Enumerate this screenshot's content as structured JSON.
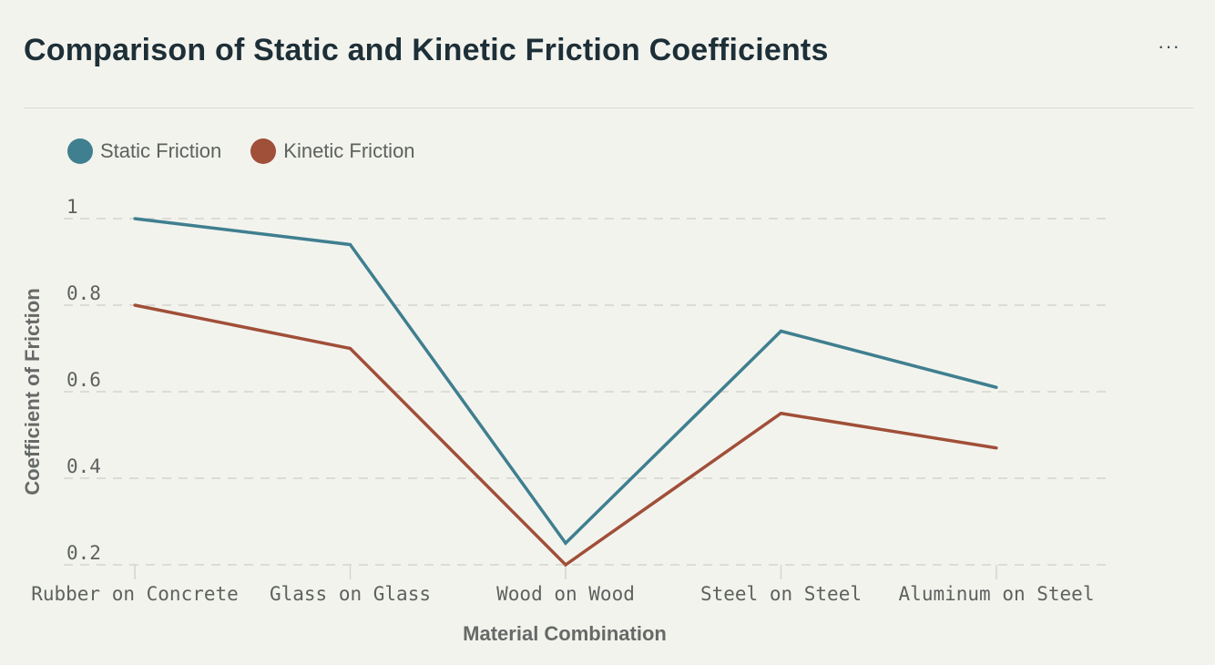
{
  "header": {
    "title": "Comparison of Static and Kinetic Friction Coefficients",
    "menu_icon": "more-horizontal-icon",
    "menu_label": "···"
  },
  "colors": {
    "static": "#3f7f8f",
    "kinetic": "#a04f38",
    "grid": "#d4d5ce"
  },
  "chart_data": {
    "type": "line",
    "title": "",
    "xlabel": "Material Combination",
    "ylabel": "Coefficient of Friction",
    "categories": [
      "Rubber on Concrete",
      "Glass on Glass",
      "Wood on Wood",
      "Steel on Steel",
      "Aluminum on Steel"
    ],
    "ylim": [
      0.2,
      1
    ],
    "yticks": [
      "0.2",
      "0.4",
      "0.6",
      "0.8",
      "1"
    ],
    "grid": true,
    "legend_position": "top-left",
    "series": [
      {
        "name": "Static Friction",
        "values": [
          1.0,
          0.94,
          0.25,
          0.74,
          0.61
        ]
      },
      {
        "name": "Kinetic Friction",
        "values": [
          0.8,
          0.7,
          0.2,
          0.55,
          0.47
        ]
      }
    ]
  }
}
